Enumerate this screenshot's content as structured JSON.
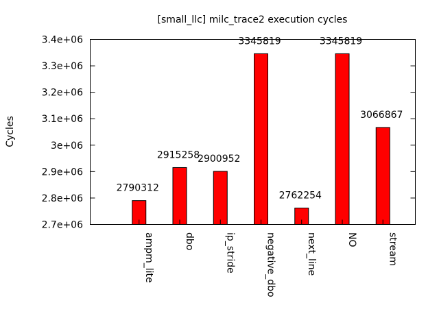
{
  "chart_data": {
    "type": "bar",
    "title": "[small_llc] milc_trace2 execution cycles",
    "ylabel": "Cycles",
    "xlabel": "",
    "ylim": [
      2700000,
      3400000
    ],
    "yticks": [
      {
        "value": 2700000,
        "label": "2.7e+06"
      },
      {
        "value": 2800000,
        "label": "2.8e+06"
      },
      {
        "value": 2900000,
        "label": "2.9e+06"
      },
      {
        "value": 3000000,
        "label": "3e+06"
      },
      {
        "value": 3100000,
        "label": "3.1e+06"
      },
      {
        "value": 3200000,
        "label": "3.2e+06"
      },
      {
        "value": 3300000,
        "label": "3.3e+06"
      },
      {
        "value": 3400000,
        "label": "3.4e+06"
      }
    ],
    "categories": [
      "ampm_lite",
      "dbo",
      "ip_stride",
      "negative_dbo",
      "next_line",
      "NO",
      "stream"
    ],
    "values": [
      2790312,
      2915258,
      2900952,
      3345819,
      2762254,
      3345819,
      3066867
    ],
    "data_labels": [
      "2790312",
      "2915258",
      "2900952",
      "3345819",
      "2762254",
      "3345819",
      "3066867"
    ],
    "bar_color": "#ff0000",
    "grid": false,
    "legend": "none"
  }
}
